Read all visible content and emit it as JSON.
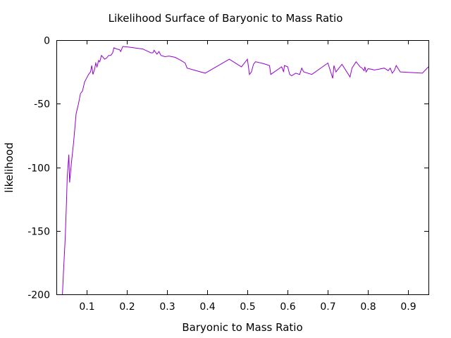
{
  "chart_data": {
    "type": "line",
    "title": "Likelihood Surface of Baryonic to Mass Ratio",
    "xlabel": "Baryonic to Mass Ratio",
    "ylabel": "likelihood",
    "xlim": [
      0.025,
      0.95
    ],
    "ylim": [
      -200,
      0
    ],
    "xticks": [
      0.1,
      0.2,
      0.3,
      0.4,
      0.5,
      0.6,
      0.7,
      0.8,
      0.9
    ],
    "xtick_labels": [
      "0.1",
      "0.2",
      "0.3",
      "0.4",
      "0.5",
      "0.6",
      "0.7",
      "0.8",
      "0.9"
    ],
    "yticks": [
      0,
      -50,
      -100,
      -150,
      -200
    ],
    "ytick_labels": [
      "0",
      "-50",
      "-100",
      "-150",
      "-200"
    ],
    "grid": false,
    "legend": "none",
    "color": "#9400d3",
    "series": [
      {
        "points": [
          [
            0.04,
            -200
          ],
          [
            0.043,
            -180
          ],
          [
            0.047,
            -155
          ],
          [
            0.05,
            -128
          ],
          [
            0.052,
            -108
          ],
          [
            0.056,
            -90
          ],
          [
            0.058,
            -112
          ],
          [
            0.062,
            -98
          ],
          [
            0.068,
            -80
          ],
          [
            0.074,
            -58
          ],
          [
            0.08,
            -50
          ],
          [
            0.085,
            -42
          ],
          [
            0.09,
            -40
          ],
          [
            0.095,
            -33
          ],
          [
            0.1,
            -30
          ],
          [
            0.105,
            -27
          ],
          [
            0.11,
            -25
          ],
          [
            0.113,
            -20
          ],
          [
            0.116,
            -27
          ],
          [
            0.12,
            -23
          ],
          [
            0.123,
            -18
          ],
          [
            0.126,
            -21
          ],
          [
            0.13,
            -16
          ],
          [
            0.133,
            -17
          ],
          [
            0.137,
            -12
          ],
          [
            0.14,
            -13
          ],
          [
            0.145,
            -15
          ],
          [
            0.15,
            -14
          ],
          [
            0.155,
            -12
          ],
          [
            0.16,
            -12
          ],
          [
            0.165,
            -10
          ],
          [
            0.168,
            -6
          ],
          [
            0.175,
            -7
          ],
          [
            0.182,
            -7.5
          ],
          [
            0.185,
            -9
          ],
          [
            0.19,
            -5
          ],
          [
            0.205,
            -5.5
          ],
          [
            0.24,
            -7
          ],
          [
            0.26,
            -10
          ],
          [
            0.265,
            -10
          ],
          [
            0.268,
            -8
          ],
          [
            0.275,
            -11
          ],
          [
            0.28,
            -9
          ],
          [
            0.285,
            -12
          ],
          [
            0.295,
            -13
          ],
          [
            0.305,
            -12.5
          ],
          [
            0.32,
            -13.5
          ],
          [
            0.335,
            -16
          ],
          [
            0.345,
            -18
          ],
          [
            0.35,
            -22
          ],
          [
            0.395,
            -26
          ],
          [
            0.455,
            -15
          ],
          [
            0.485,
            -21
          ],
          [
            0.5,
            -15
          ],
          [
            0.505,
            -27
          ],
          [
            0.51,
            -25
          ],
          [
            0.515,
            -19
          ],
          [
            0.52,
            -17
          ],
          [
            0.54,
            -18.5
          ],
          [
            0.555,
            -20
          ],
          [
            0.558,
            -27
          ],
          [
            0.585,
            -21
          ],
          [
            0.59,
            -25
          ],
          [
            0.592,
            -20
          ],
          [
            0.6,
            -21
          ],
          [
            0.605,
            -27
          ],
          [
            0.61,
            -28
          ],
          [
            0.62,
            -26
          ],
          [
            0.63,
            -27
          ],
          [
            0.635,
            -22
          ],
          [
            0.64,
            -25
          ],
          [
            0.66,
            -27
          ],
          [
            0.7,
            -18
          ],
          [
            0.71,
            -28
          ],
          [
            0.712,
            -30
          ],
          [
            0.715,
            -20
          ],
          [
            0.72,
            -25
          ],
          [
            0.735,
            -19
          ],
          [
            0.755,
            -29
          ],
          [
            0.76,
            -22
          ],
          [
            0.77,
            -17
          ],
          [
            0.78,
            -21
          ],
          [
            0.785,
            -22
          ],
          [
            0.79,
            -24
          ],
          [
            0.792,
            -21
          ],
          [
            0.795,
            -25
          ],
          [
            0.8,
            -22.5
          ],
          [
            0.81,
            -23
          ],
          [
            0.815,
            -23.5
          ],
          [
            0.825,
            -23
          ],
          [
            0.84,
            -22
          ],
          [
            0.85,
            -24
          ],
          [
            0.855,
            -22
          ],
          [
            0.86,
            -26
          ],
          [
            0.865,
            -24
          ],
          [
            0.87,
            -20
          ],
          [
            0.88,
            -25
          ],
          [
            0.935,
            -26
          ],
          [
            0.95,
            -21
          ]
        ]
      }
    ]
  }
}
